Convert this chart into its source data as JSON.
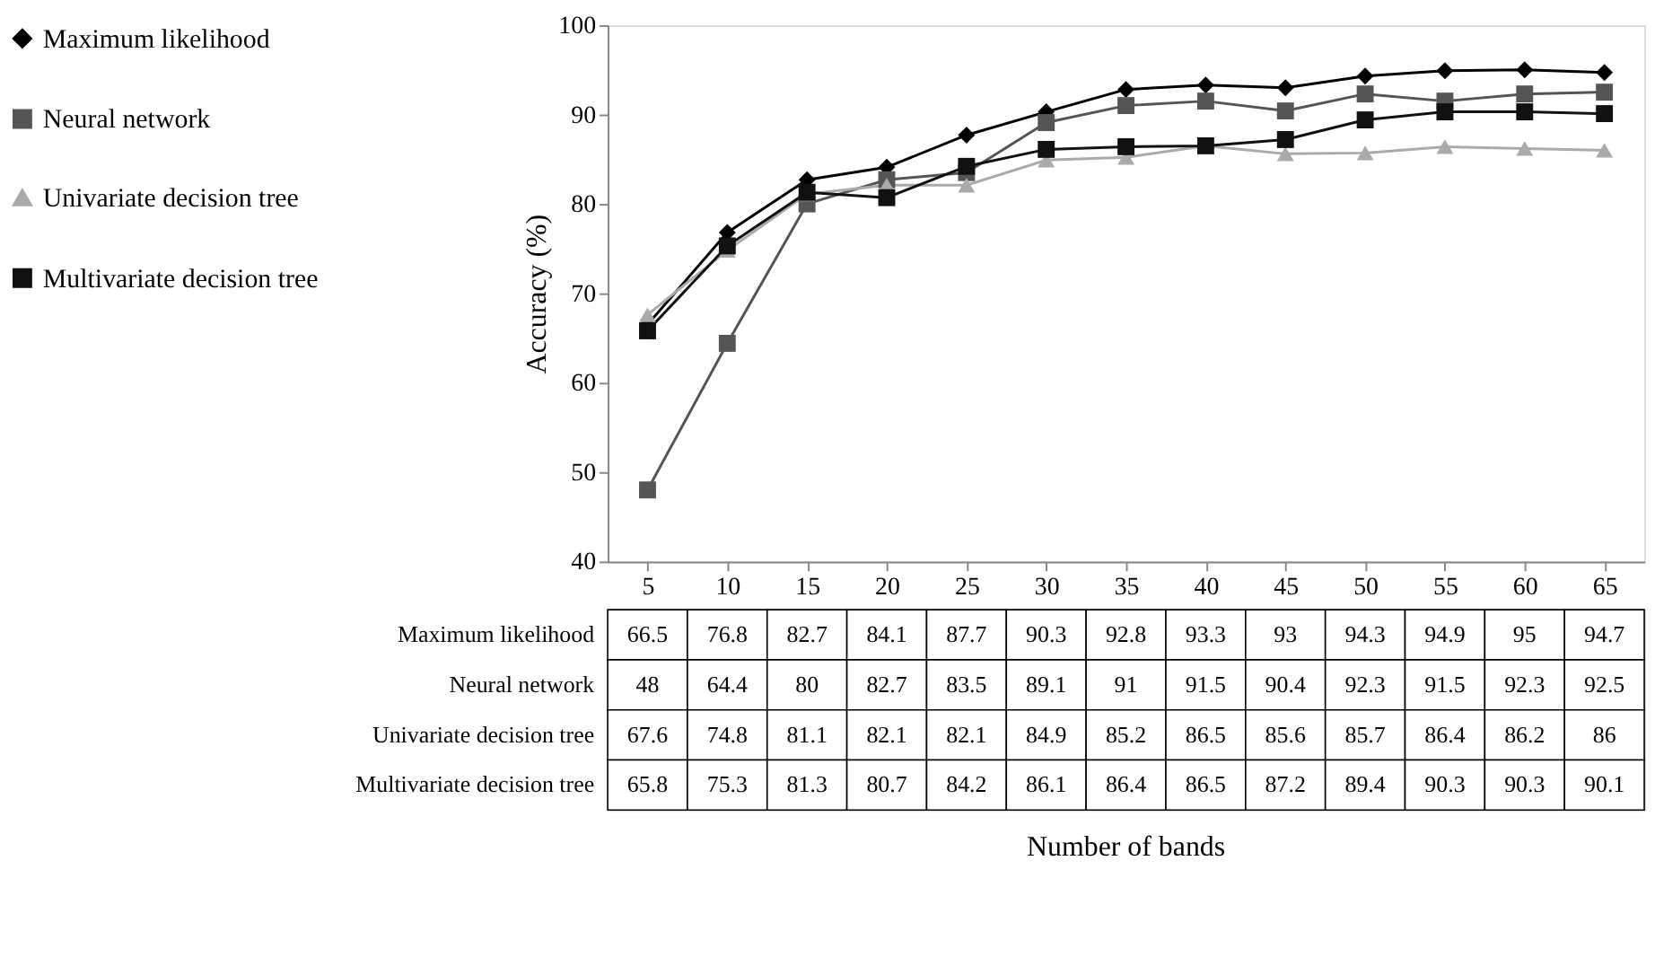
{
  "chart_data": {
    "type": "line",
    "annotations": [
      "Number of bands"
    ],
    "ylabel": "Accuracy (%)",
    "categories": [
      "5",
      "10",
      "15",
      "20",
      "25",
      "30",
      "35",
      "40",
      "45",
      "50",
      "55",
      "60",
      "65"
    ],
    "series": [
      {
        "name": "Maximum likelihood",
        "color": "#000000",
        "marker": "diamond",
        "values": [
          66.5,
          76.8,
          82.7,
          84.1,
          87.7,
          90.3,
          92.8,
          93.3,
          93,
          94.3,
          94.9,
          95,
          94.7
        ]
      },
      {
        "name": "Neural network",
        "color": "#555555",
        "marker": "square",
        "values": [
          48,
          64.4,
          80,
          82.7,
          83.5,
          89.1,
          91,
          91.5,
          90.4,
          92.3,
          91.5,
          92.3,
          92.5
        ]
      },
      {
        "name": "Univariate decision tree",
        "color": "#aaaaaa",
        "marker": "triangle",
        "values": [
          67.6,
          74.8,
          81.1,
          82.1,
          82.1,
          84.9,
          85.2,
          86.5,
          85.6,
          85.7,
          86.4,
          86.2,
          86
        ]
      },
      {
        "name": "Multivariate decision tree",
        "color": "#111111",
        "marker": "square",
        "values": [
          65.8,
          75.3,
          81.3,
          80.7,
          84.2,
          86.1,
          86.4,
          86.5,
          87.2,
          89.4,
          90.3,
          90.3,
          90.1
        ]
      }
    ],
    "ylim": [
      40,
      100
    ],
    "yticks": [
      40,
      50,
      60,
      70,
      80,
      90,
      100
    ],
    "grid": false,
    "legend": "left",
    "data_labels": true,
    "line_style": "solid"
  }
}
